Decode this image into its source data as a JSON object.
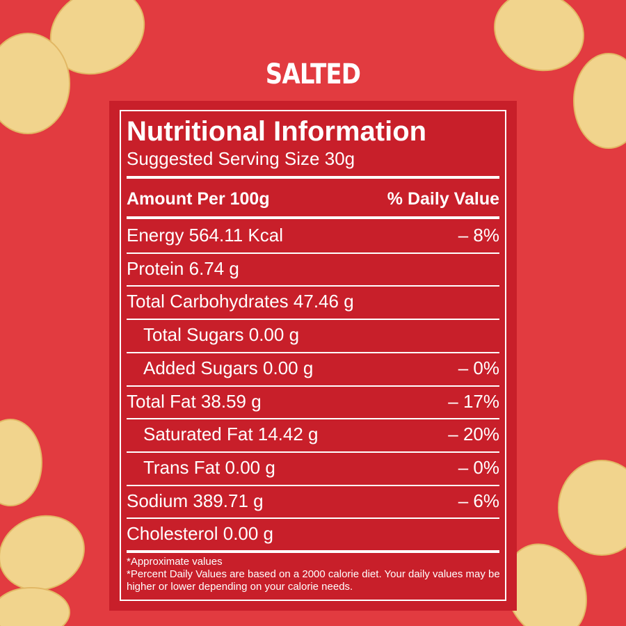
{
  "heading": "SALTED",
  "label": {
    "title": "Nutritional Information",
    "serving": "Suggested Serving Size 30g",
    "header": {
      "left": "Amount Per 100g",
      "right": "% Daily Value"
    },
    "rows": [
      {
        "name": "Energy 564.11 Kcal",
        "dv": "– 8%"
      },
      {
        "name": "Protein 6.74 g"
      },
      {
        "name": "Total Carbohydrates 47.46 g"
      },
      {
        "name": "Total Sugars 0.00 g",
        "indent": true
      },
      {
        "name": "Added Sugars 0.00 g",
        "dv": "– 0%",
        "indent": true
      },
      {
        "name": "Total Fat 38.59 g",
        "dv": "– 17%"
      },
      {
        "name": "Saturated Fat 14.42 g",
        "dv": "– 20%",
        "indent": true
      },
      {
        "name": "Trans Fat 0.00 g",
        "dv": "– 0%",
        "indent": true
      },
      {
        "name": "Sodium 389.71 g",
        "dv": "– 6%"
      },
      {
        "name": "Cholesterol 0.00 g"
      }
    ],
    "notes": [
      "*Approximate values",
      "*Percent Daily Values are based on a 2000 calorie diet. Your daily values may be higher or lower depending on your calorie needs."
    ]
  }
}
